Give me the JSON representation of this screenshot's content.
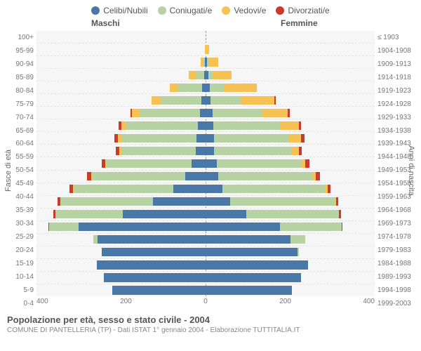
{
  "legend": {
    "items": [
      {
        "label": "Celibi/Nubili",
        "color": "#4a78a6"
      },
      {
        "label": "Coniugati/e",
        "color": "#b7d3a3"
      },
      {
        "label": "Vedovi/e",
        "color": "#f6c253"
      },
      {
        "label": "Divorziati/e",
        "color": "#c93a2f"
      }
    ]
  },
  "headers": {
    "male": "Maschi",
    "female": "Femmine"
  },
  "axis": {
    "left_label": "Fasce di età",
    "right_label": "Anni di nascita",
    "xmax": 400,
    "xticks": [
      "400",
      "200",
      "0",
      "200",
      "400"
    ]
  },
  "colors": {
    "celibi": "#4a78a6",
    "coniugati": "#b7d3a3",
    "vedovi": "#f6c253",
    "divorziati": "#c93a2f",
    "plot_bg": "#f6f6f6",
    "grid": "#e6e6e6"
  },
  "pyramid": {
    "rows": [
      {
        "age": "100+",
        "birth": "≤ 1903",
        "m": {
          "c": 0,
          "co": 0,
          "v": 0,
          "d": 0
        },
        "f": {
          "c": 0,
          "co": 0,
          "v": 0,
          "d": 0
        }
      },
      {
        "age": "95-99",
        "birth": "1904-1908",
        "m": {
          "c": 0,
          "co": 0,
          "v": 2,
          "d": 0
        },
        "f": {
          "c": 0,
          "co": 0,
          "v": 8,
          "d": 0
        }
      },
      {
        "age": "90-94",
        "birth": "1909-1913",
        "m": {
          "c": 2,
          "co": 4,
          "v": 6,
          "d": 0
        },
        "f": {
          "c": 4,
          "co": 2,
          "v": 24,
          "d": 0
        }
      },
      {
        "age": "85-89",
        "birth": "1914-1918",
        "m": {
          "c": 4,
          "co": 20,
          "v": 16,
          "d": 0
        },
        "f": {
          "c": 6,
          "co": 10,
          "v": 46,
          "d": 0
        }
      },
      {
        "age": "80-84",
        "birth": "1919-1923",
        "m": {
          "c": 8,
          "co": 56,
          "v": 20,
          "d": 0
        },
        "f": {
          "c": 10,
          "co": 34,
          "v": 78,
          "d": 0
        }
      },
      {
        "age": "75-79",
        "birth": "1924-1928",
        "m": {
          "c": 10,
          "co": 96,
          "v": 22,
          "d": 0
        },
        "f": {
          "c": 12,
          "co": 72,
          "v": 78,
          "d": 4
        }
      },
      {
        "age": "70-74",
        "birth": "1929-1933",
        "m": {
          "c": 14,
          "co": 142,
          "v": 18,
          "d": 4
        },
        "f": {
          "c": 16,
          "co": 116,
          "v": 62,
          "d": 6
        }
      },
      {
        "age": "65-69",
        "birth": "1934-1938",
        "m": {
          "c": 18,
          "co": 170,
          "v": 12,
          "d": 6
        },
        "f": {
          "c": 18,
          "co": 158,
          "v": 44,
          "d": 6
        }
      },
      {
        "age": "60-64",
        "birth": "1939-1943",
        "m": {
          "c": 22,
          "co": 178,
          "v": 8,
          "d": 8
        },
        "f": {
          "c": 20,
          "co": 178,
          "v": 28,
          "d": 8
        }
      },
      {
        "age": "55-59",
        "birth": "1944-1948",
        "m": {
          "c": 24,
          "co": 176,
          "v": 4,
          "d": 8
        },
        "f": {
          "c": 20,
          "co": 184,
          "v": 16,
          "d": 8
        }
      },
      {
        "age": "50-54",
        "birth": "1949-1953",
        "m": {
          "c": 34,
          "co": 200,
          "v": 4,
          "d": 8
        },
        "f": {
          "c": 26,
          "co": 200,
          "v": 10,
          "d": 10
        }
      },
      {
        "age": "45-49",
        "birth": "1954-1958",
        "m": {
          "c": 48,
          "co": 220,
          "v": 2,
          "d": 10
        },
        "f": {
          "c": 30,
          "co": 224,
          "v": 6,
          "d": 10
        }
      },
      {
        "age": "40-44",
        "birth": "1959-1963",
        "m": {
          "c": 76,
          "co": 236,
          "v": 2,
          "d": 8
        },
        "f": {
          "c": 40,
          "co": 244,
          "v": 4,
          "d": 8
        }
      },
      {
        "age": "35-39",
        "birth": "1964-1968",
        "m": {
          "c": 124,
          "co": 220,
          "v": 0,
          "d": 6
        },
        "f": {
          "c": 58,
          "co": 248,
          "v": 2,
          "d": 6
        }
      },
      {
        "age": "30-34",
        "birth": "1969-1973",
        "m": {
          "c": 196,
          "co": 160,
          "v": 0,
          "d": 4
        },
        "f": {
          "c": 96,
          "co": 220,
          "v": 0,
          "d": 4
        }
      },
      {
        "age": "25-29",
        "birth": "1974-1978",
        "m": {
          "c": 300,
          "co": 70,
          "v": 0,
          "d": 2
        },
        "f": {
          "c": 176,
          "co": 146,
          "v": 0,
          "d": 2
        }
      },
      {
        "age": "20-24",
        "birth": "1979-1983",
        "m": {
          "c": 256,
          "co": 10,
          "v": 0,
          "d": 0
        },
        "f": {
          "c": 200,
          "co": 36,
          "v": 0,
          "d": 0
        }
      },
      {
        "age": "15-19",
        "birth": "1984-1988",
        "m": {
          "c": 246,
          "co": 0,
          "v": 0,
          "d": 0
        },
        "f": {
          "c": 218,
          "co": 2,
          "v": 0,
          "d": 0
        }
      },
      {
        "age": "10-14",
        "birth": "1989-1993",
        "m": {
          "c": 258,
          "co": 0,
          "v": 0,
          "d": 0
        },
        "f": {
          "c": 242,
          "co": 0,
          "v": 0,
          "d": 0
        }
      },
      {
        "age": "5-9",
        "birth": "1994-1998",
        "m": {
          "c": 240,
          "co": 0,
          "v": 0,
          "d": 0
        },
        "f": {
          "c": 226,
          "co": 0,
          "v": 0,
          "d": 0
        }
      },
      {
        "age": "0-4",
        "birth": "1999-2003",
        "m": {
          "c": 220,
          "co": 0,
          "v": 0,
          "d": 0
        },
        "f": {
          "c": 204,
          "co": 0,
          "v": 0,
          "d": 0
        }
      }
    ]
  },
  "footer": {
    "title": "Popolazione per età, sesso e stato civile - 2004",
    "subtitle": "COMUNE DI PANTELLERIA (TP) - Dati ISTAT 1° gennaio 2004 - Elaborazione TUTTITALIA.IT"
  }
}
